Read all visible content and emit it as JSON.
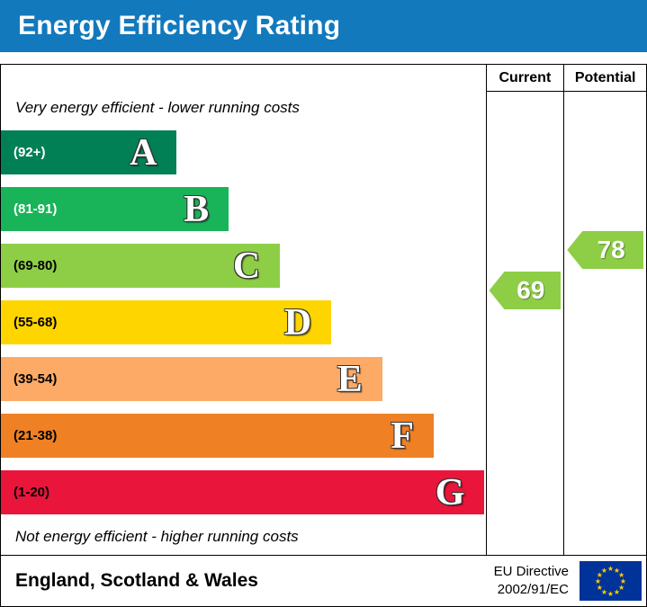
{
  "banner": {
    "title": "Energy Efficiency Rating",
    "bg_color": "#1279bd",
    "text_color": "#ffffff"
  },
  "columns": {
    "current_label": "Current",
    "potential_label": "Potential"
  },
  "notes": {
    "top": "Very energy efficient - lower running costs",
    "bottom": "Not energy efficient - higher running costs"
  },
  "bands": [
    {
      "letter": "A",
      "range": "(92+)",
      "color": "#008054",
      "width_pct": 36.3,
      "range_color": "#ffffff"
    },
    {
      "letter": "B",
      "range": "(81-91)",
      "color": "#19b459",
      "width_pct": 47.0,
      "range_color": "#ffffff"
    },
    {
      "letter": "C",
      "range": "(69-80)",
      "color": "#8dce46",
      "width_pct": 57.6,
      "range_color": "#000000"
    },
    {
      "letter": "D",
      "range": "(55-68)",
      "color": "#ffd500",
      "width_pct": 68.2,
      "range_color": "#000000"
    },
    {
      "letter": "E",
      "range": "(39-54)",
      "color": "#fcaa65",
      "width_pct": 78.7,
      "range_color": "#000000"
    },
    {
      "letter": "F",
      "range": "(21-38)",
      "color": "#ef8023",
      "width_pct": 89.3,
      "range_color": "#000000"
    },
    {
      "letter": "G",
      "range": "(1-20)",
      "color": "#e9153b",
      "width_pct": 99.8,
      "range_color": "#000000"
    }
  ],
  "ratings": {
    "current": {
      "value": "69",
      "color": "#8dce46"
    },
    "potential": {
      "value": "78",
      "color": "#8dce46"
    }
  },
  "footer": {
    "region": "England, Scotland & Wales",
    "directive": [
      "EU Directive",
      "2002/91/EC"
    ],
    "flag": {
      "bg": "#003399",
      "star": "#ffcc00"
    }
  },
  "chart_data": {
    "type": "bar",
    "orientation": "horizontal",
    "title": "Energy Efficiency Rating",
    "categories": [
      "A",
      "B",
      "C",
      "D",
      "E",
      "F",
      "G"
    ],
    "band_ranges": [
      "92+",
      "81-91",
      "69-80",
      "55-68",
      "39-54",
      "21-38",
      "1-20"
    ],
    "band_colors": [
      "#008054",
      "#19b459",
      "#8dce46",
      "#ffd500",
      "#fcaa65",
      "#ef8023",
      "#e9153b"
    ],
    "bar_lengths_pct": [
      36.3,
      47.0,
      57.6,
      68.2,
      78.7,
      89.3,
      99.8
    ],
    "scale": [
      1,
      100
    ],
    "series": [
      {
        "name": "Current",
        "value": 69,
        "band": "C",
        "color": "#8dce46"
      },
      {
        "name": "Potential",
        "value": 78,
        "band": "C",
        "color": "#8dce46"
      }
    ],
    "top_annotation": "Very energy efficient - lower running costs",
    "bottom_annotation": "Not energy efficient - higher running costs",
    "region_label": "England, Scotland & Wales",
    "directive_label": "EU Directive 2002/91/EC"
  }
}
